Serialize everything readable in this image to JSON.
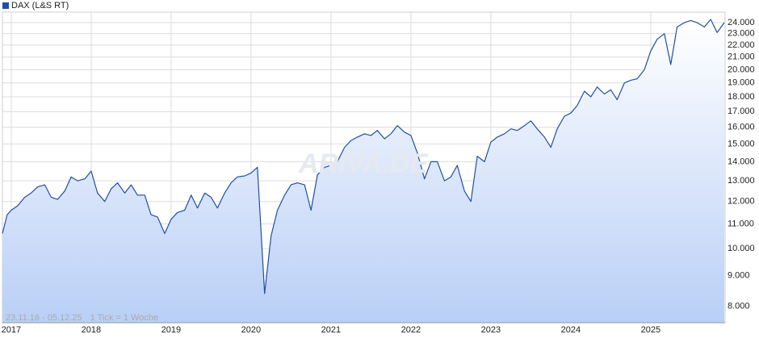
{
  "chart_data": {
    "type": "line",
    "subtitle": "23.11.16 - 05.12.25",
    "note": "1 Tick = 1 Woche",
    "watermark": "ARIVA.DE",
    "log_scale": true,
    "grid": true,
    "legend": "top-left",
    "xlim": [
      2016.89,
      2025.93
    ],
    "ylim": [
      7500,
      25000
    ],
    "xticks": [
      2017,
      2018,
      2019,
      2020,
      2021,
      2022,
      2023,
      2024,
      2025
    ],
    "yticks": [
      {
        "value": 8000,
        "label": "8.000"
      },
      {
        "value": 9000,
        "label": "9.000"
      },
      {
        "value": 10000,
        "label": "10.000"
      },
      {
        "value": 11000,
        "label": "11.000"
      },
      {
        "value": 12000,
        "label": "12.000"
      },
      {
        "value": 13000,
        "label": "13.000"
      },
      {
        "value": 14000,
        "label": "14.000"
      },
      {
        "value": 15000,
        "label": "15.000"
      },
      {
        "value": 16000,
        "label": "16.000"
      },
      {
        "value": 17000,
        "label": "17.000"
      },
      {
        "value": 18000,
        "label": "18.000"
      },
      {
        "value": 19000,
        "label": "19.000"
      },
      {
        "value": 20000,
        "label": "20.000"
      },
      {
        "value": 21000,
        "label": "21.000"
      },
      {
        "value": 22000,
        "label": "22.000"
      },
      {
        "value": 23000,
        "label": "23.000"
      },
      {
        "value": 24000,
        "label": "24.000"
      }
    ],
    "x": [
      2016.89,
      2016.95,
      2017.0,
      2017.08,
      2017.17,
      2017.25,
      2017.33,
      2017.42,
      2017.5,
      2017.58,
      2017.67,
      2017.75,
      2017.83,
      2017.92,
      2018.0,
      2018.08,
      2018.17,
      2018.25,
      2018.33,
      2018.42,
      2018.5,
      2018.58,
      2018.67,
      2018.75,
      2018.83,
      2018.92,
      2019.0,
      2019.08,
      2019.17,
      2019.25,
      2019.33,
      2019.42,
      2019.5,
      2019.58,
      2019.67,
      2019.75,
      2019.83,
      2019.92,
      2020.0,
      2020.08,
      2020.17,
      2020.25,
      2020.33,
      2020.42,
      2020.5,
      2020.58,
      2020.67,
      2020.75,
      2020.83,
      2020.92,
      2021.0,
      2021.08,
      2021.17,
      2021.25,
      2021.33,
      2021.42,
      2021.5,
      2021.58,
      2021.67,
      2021.75,
      2021.83,
      2021.92,
      2022.0,
      2022.08,
      2022.17,
      2022.25,
      2022.33,
      2022.42,
      2022.5,
      2022.58,
      2022.67,
      2022.75,
      2022.83,
      2022.92,
      2023.0,
      2023.08,
      2023.17,
      2023.25,
      2023.33,
      2023.42,
      2023.5,
      2023.58,
      2023.67,
      2023.75,
      2023.83,
      2023.92,
      2024.0,
      2024.08,
      2024.17,
      2024.25,
      2024.33,
      2024.42,
      2024.5,
      2024.58,
      2024.67,
      2024.75,
      2024.83,
      2024.92,
      2025.0,
      2025.08,
      2025.17,
      2025.25,
      2025.33,
      2025.42,
      2025.5,
      2025.58,
      2025.67,
      2025.75,
      2025.83,
      2025.92
    ],
    "series": [
      {
        "name": "DAX (L&S RT)",
        "color": "#1f4fa8",
        "values": [
          10600,
          11400,
          11600,
          11800,
          12200,
          12400,
          12700,
          12800,
          12200,
          12100,
          12500,
          13200,
          13000,
          13100,
          13500,
          12400,
          12000,
          12600,
          12900,
          12400,
          12800,
          12300,
          12300,
          11400,
          11300,
          10600,
          11200,
          11500,
          11600,
          12300,
          11700,
          12400,
          12200,
          11700,
          12400,
          12900,
          13200,
          13250,
          13400,
          13700,
          8400,
          10500,
          11600,
          12300,
          12800,
          12900,
          12800,
          11600,
          13300,
          13700,
          13800,
          14000,
          14800,
          15200,
          15400,
          15600,
          15500,
          15800,
          15300,
          15600,
          16100,
          15700,
          15500,
          14500,
          13100,
          14000,
          14000,
          13000,
          13200,
          13800,
          12500,
          12000,
          14300,
          14000,
          15100,
          15400,
          15600,
          15900,
          15800,
          16100,
          16400,
          15900,
          15400,
          14800,
          15900,
          16700,
          16900,
          17400,
          18400,
          18000,
          18700,
          18200,
          18500,
          17800,
          19000,
          19200,
          19300,
          20000,
          21500,
          22500,
          23000,
          20400,
          23600,
          24000,
          24200,
          24000,
          23600,
          24300,
          23100,
          24000
        ]
      }
    ]
  }
}
